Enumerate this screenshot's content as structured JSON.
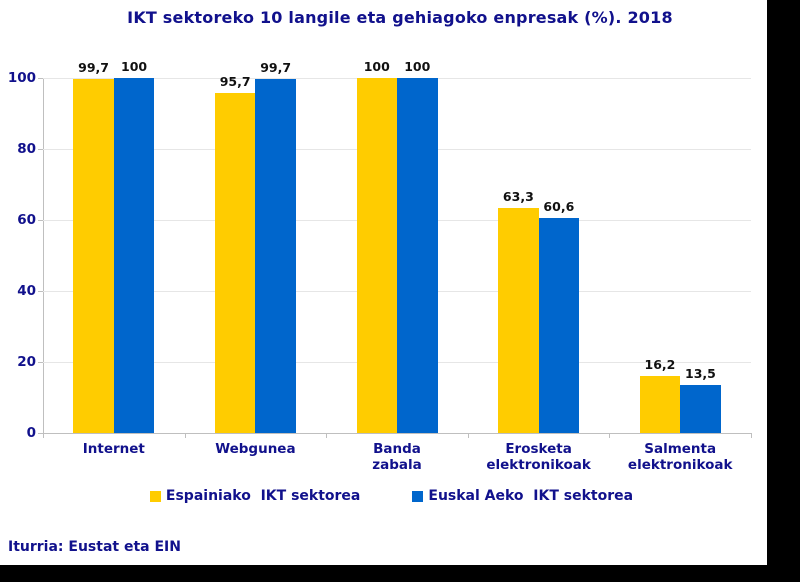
{
  "chart_data": {
    "type": "bar",
    "title": "IKT sektoreko 10 langile eta gehiagoko enpresak (%). 2018",
    "categories": [
      "Internet",
      "Webgunea",
      "Banda\nzabala",
      "Erosketa\nelektronikoak",
      "Salmenta\nelektronikoak"
    ],
    "series": [
      {
        "name": "Espainiako  IKT sektorea",
        "color": "#FFCC00",
        "values": [
          99.7,
          95.7,
          100,
          63.3,
          16.2
        ],
        "labels": [
          "99,7",
          "95,7",
          "100",
          "63,3",
          "16,2"
        ]
      },
      {
        "name": "Euskal Aeko  IKT sektorea",
        "color": "#0066CC",
        "values": [
          100,
          99.7,
          100,
          60.6,
          13.5
        ],
        "labels": [
          "100",
          "99,7",
          "100",
          "60,6",
          "13,5"
        ]
      }
    ],
    "ylim": [
      0,
      100
    ],
    "yticks": [
      0,
      20,
      40,
      60,
      80,
      100
    ],
    "grid": true,
    "legend_position": "bottom",
    "source": "Iturria: Eustat eta EIN",
    "colors": {
      "text_navy": "#11118C",
      "value_label": "#111111",
      "gridline": "#E6E6E6",
      "axis": "#BFBFBF",
      "background": "#FFFFFF",
      "frame": "#000000"
    }
  }
}
